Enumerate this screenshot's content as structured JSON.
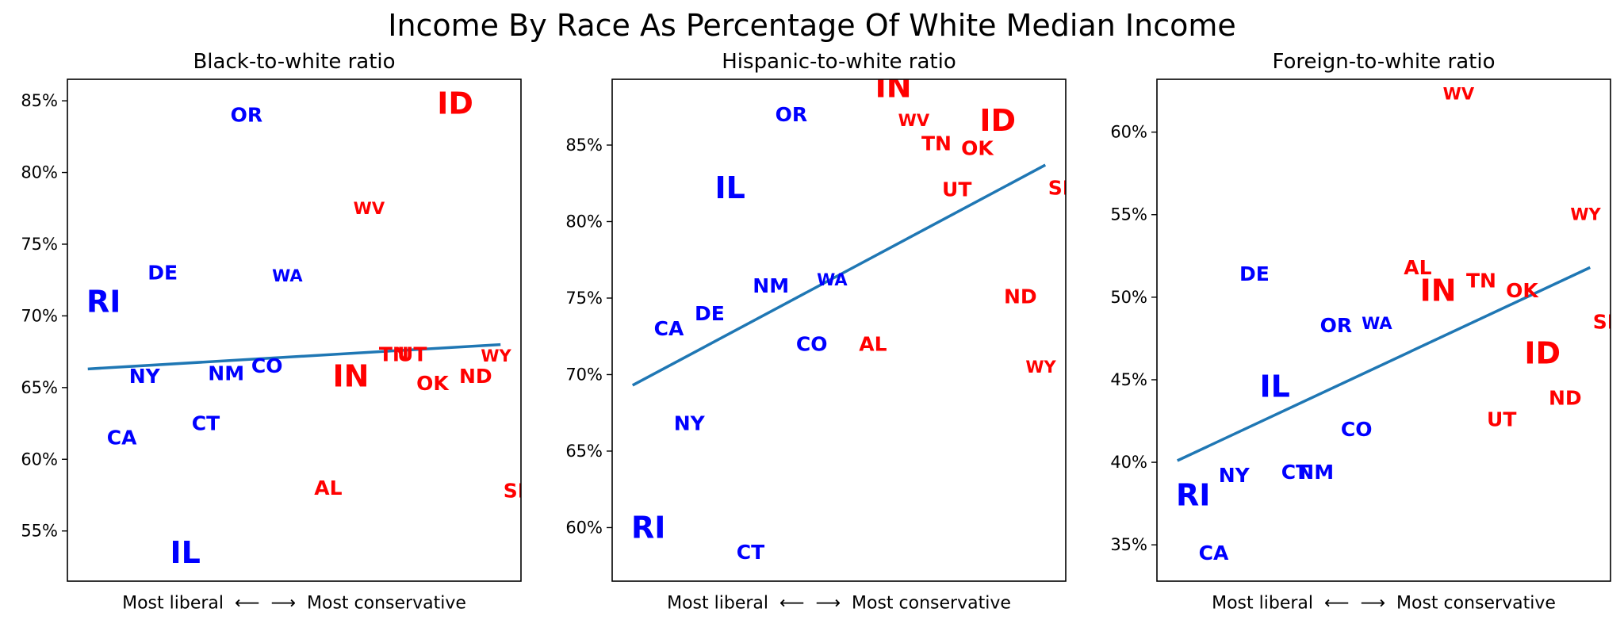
{
  "figure_title": "Income By Race As Percentage Of White Median Income",
  "colors": {
    "liberal": "#0000ff",
    "conservative": "#ff0000",
    "trend": "#1f77b4",
    "axis": "#000000"
  },
  "chart_data": [
    {
      "type": "scatter",
      "title": "Black-to-white ratio",
      "xlabel": "Most liberal  ⟵  ⟶  Most conservative",
      "ylabel": "",
      "xlim": [
        0,
        1
      ],
      "ylim": [
        51.5,
        86.5
      ],
      "yticks": [
        55,
        60,
        65,
        70,
        75,
        80,
        85
      ],
      "ytick_labels": [
        "55%",
        "60%",
        "65%",
        "70%",
        "75%",
        "80%",
        "85%"
      ],
      "trend": {
        "x": [
          0.045,
          0.955
        ],
        "y": [
          66.3,
          68.0
        ]
      },
      "points": [
        {
          "label": "RI",
          "x": 0.08,
          "y": 71.0,
          "color": "#0000ff",
          "size": "large"
        },
        {
          "label": "CA",
          "x": 0.12,
          "y": 61.5,
          "color": "#0000ff",
          "size": "small"
        },
        {
          "label": "NY",
          "x": 0.17,
          "y": 65.8,
          "color": "#0000ff",
          "size": "small"
        },
        {
          "label": "DE",
          "x": 0.21,
          "y": 73.0,
          "color": "#0000ff",
          "size": "small"
        },
        {
          "label": "IL",
          "x": 0.26,
          "y": 53.5,
          "color": "#0000ff",
          "size": "large"
        },
        {
          "label": "CT",
          "x": 0.305,
          "y": 62.5,
          "color": "#0000ff",
          "size": "small"
        },
        {
          "label": "NM",
          "x": 0.35,
          "y": 66.0,
          "color": "#0000ff",
          "size": "small"
        },
        {
          "label": "OR",
          "x": 0.395,
          "y": 84.0,
          "color": "#0000ff",
          "size": "small"
        },
        {
          "label": "CO",
          "x": 0.44,
          "y": 66.5,
          "color": "#0000ff",
          "size": "small"
        },
        {
          "label": "WA",
          "x": 0.485,
          "y": 72.8,
          "color": "#0000ff",
          "size": "xsmall"
        },
        {
          "label": "AL",
          "x": 0.575,
          "y": 58.0,
          "color": "#ff0000",
          "size": "small"
        },
        {
          "label": "IN",
          "x": 0.625,
          "y": 65.8,
          "color": "#ff0000",
          "size": "large"
        },
        {
          "label": "WV",
          "x": 0.665,
          "y": 77.5,
          "color": "#ff0000",
          "size": "xsmall"
        },
        {
          "label": "TN",
          "x": 0.72,
          "y": 67.3,
          "color": "#ff0000",
          "size": "small"
        },
        {
          "label": "UT",
          "x": 0.76,
          "y": 67.3,
          "color": "#ff0000",
          "size": "small"
        },
        {
          "label": "ID",
          "x": 0.855,
          "y": 84.8,
          "color": "#ff0000",
          "size": "large"
        },
        {
          "label": "OK",
          "x": 0.805,
          "y": 65.3,
          "color": "#ff0000",
          "size": "small"
        },
        {
          "label": "ND",
          "x": 0.9,
          "y": 65.8,
          "color": "#ff0000",
          "size": "small"
        },
        {
          "label": "WY",
          "x": 0.945,
          "y": 67.2,
          "color": "#ff0000",
          "size": "xsmall"
        },
        {
          "label": "SD",
          "x": 0.995,
          "y": 57.8,
          "color": "#ff0000",
          "size": "small"
        }
      ]
    },
    {
      "type": "scatter",
      "title": "Hispanic-to-white ratio",
      "xlabel": "Most liberal  ⟵  ⟶  Most conservative",
      "ylabel": "",
      "xlim": [
        0,
        1
      ],
      "ylim": [
        56.5,
        89.3
      ],
      "yticks": [
        60,
        65,
        70,
        75,
        80,
        85
      ],
      "ytick_labels": [
        "60%",
        "65%",
        "70%",
        "75%",
        "80%",
        "85%"
      ],
      "trend": {
        "x": [
          0.045,
          0.955
        ],
        "y": [
          69.3,
          83.7
        ]
      },
      "points": [
        {
          "label": "RI",
          "x": 0.08,
          "y": 60.0,
          "color": "#0000ff",
          "size": "large"
        },
        {
          "label": "CA",
          "x": 0.125,
          "y": 73.0,
          "color": "#0000ff",
          "size": "small"
        },
        {
          "label": "NY",
          "x": 0.17,
          "y": 66.8,
          "color": "#0000ff",
          "size": "small"
        },
        {
          "label": "DE",
          "x": 0.215,
          "y": 74.0,
          "color": "#0000ff",
          "size": "small"
        },
        {
          "label": "IL",
          "x": 0.26,
          "y": 82.2,
          "color": "#0000ff",
          "size": "large"
        },
        {
          "label": "CT",
          "x": 0.305,
          "y": 58.4,
          "color": "#0000ff",
          "size": "small"
        },
        {
          "label": "NM",
          "x": 0.35,
          "y": 75.8,
          "color": "#0000ff",
          "size": "small"
        },
        {
          "label": "OR",
          "x": 0.395,
          "y": 87.0,
          "color": "#0000ff",
          "size": "small"
        },
        {
          "label": "CO",
          "x": 0.44,
          "y": 72.0,
          "color": "#0000ff",
          "size": "small"
        },
        {
          "label": "WA",
          "x": 0.485,
          "y": 76.2,
          "color": "#0000ff",
          "size": "xsmall"
        },
        {
          "label": "AL",
          "x": 0.575,
          "y": 72.0,
          "color": "#ff0000",
          "size": "small"
        },
        {
          "label": "IN",
          "x": 0.62,
          "y": 88.8,
          "color": "#ff0000",
          "size": "large"
        },
        {
          "label": "WV",
          "x": 0.665,
          "y": 86.6,
          "color": "#ff0000",
          "size": "xsmall"
        },
        {
          "label": "TN",
          "x": 0.715,
          "y": 85.1,
          "color": "#ff0000",
          "size": "small"
        },
        {
          "label": "UT",
          "x": 0.76,
          "y": 82.1,
          "color": "#ff0000",
          "size": "small"
        },
        {
          "label": "OK",
          "x": 0.805,
          "y": 84.8,
          "color": "#ff0000",
          "size": "small"
        },
        {
          "label": "ID",
          "x": 0.85,
          "y": 86.6,
          "color": "#ff0000",
          "size": "large"
        },
        {
          "label": "ND",
          "x": 0.9,
          "y": 75.1,
          "color": "#ff0000",
          "size": "small"
        },
        {
          "label": "WY",
          "x": 0.945,
          "y": 70.5,
          "color": "#ff0000",
          "size": "xsmall"
        },
        {
          "label": "SD",
          "x": 0.995,
          "y": 82.2,
          "color": "#ff0000",
          "size": "small"
        }
      ]
    },
    {
      "type": "scatter",
      "title": "Foreign-to-white ratio",
      "xlabel": "Most liberal  ⟵  ⟶  Most conservative",
      "ylabel": "",
      "xlim": [
        0,
        1
      ],
      "ylim": [
        32.8,
        63.2
      ],
      "yticks": [
        35,
        40,
        45,
        50,
        55,
        60
      ],
      "ytick_labels": [
        "35%",
        "40%",
        "45%",
        "50%",
        "55%",
        "60%"
      ],
      "trend": {
        "x": [
          0.045,
          0.955
        ],
        "y": [
          40.1,
          51.8
        ]
      },
      "points": [
        {
          "label": "RI",
          "x": 0.08,
          "y": 38.0,
          "color": "#0000ff",
          "size": "large"
        },
        {
          "label": "CA",
          "x": 0.125,
          "y": 34.5,
          "color": "#0000ff",
          "size": "small"
        },
        {
          "label": "NY",
          "x": 0.17,
          "y": 39.2,
          "color": "#0000ff",
          "size": "small"
        },
        {
          "label": "DE",
          "x": 0.215,
          "y": 51.4,
          "color": "#0000ff",
          "size": "small"
        },
        {
          "label": "IL",
          "x": 0.26,
          "y": 44.6,
          "color": "#0000ff",
          "size": "large"
        },
        {
          "label": "CT",
          "x": 0.305,
          "y": 39.4,
          "color": "#0000ff",
          "size": "small"
        },
        {
          "label": "NM",
          "x": 0.35,
          "y": 39.4,
          "color": "#0000ff",
          "size": "small"
        },
        {
          "label": "OR",
          "x": 0.395,
          "y": 48.3,
          "color": "#0000ff",
          "size": "small"
        },
        {
          "label": "CO",
          "x": 0.44,
          "y": 42.0,
          "color": "#0000ff",
          "size": "small"
        },
        {
          "label": "WA",
          "x": 0.485,
          "y": 48.4,
          "color": "#0000ff",
          "size": "xsmall"
        },
        {
          "label": "AL",
          "x": 0.575,
          "y": 51.8,
          "color": "#ff0000",
          "size": "small"
        },
        {
          "label": "IN",
          "x": 0.62,
          "y": 50.4,
          "color": "#ff0000",
          "size": "large"
        },
        {
          "label": "WV",
          "x": 0.665,
          "y": 62.3,
          "color": "#ff0000",
          "size": "xsmall"
        },
        {
          "label": "TN",
          "x": 0.715,
          "y": 51.0,
          "color": "#ff0000",
          "size": "small"
        },
        {
          "label": "UT",
          "x": 0.76,
          "y": 42.6,
          "color": "#ff0000",
          "size": "small"
        },
        {
          "label": "OK",
          "x": 0.805,
          "y": 50.4,
          "color": "#ff0000",
          "size": "small"
        },
        {
          "label": "ID",
          "x": 0.85,
          "y": 46.6,
          "color": "#ff0000",
          "size": "large"
        },
        {
          "label": "ND",
          "x": 0.9,
          "y": 43.9,
          "color": "#ff0000",
          "size": "small"
        },
        {
          "label": "WY",
          "x": 0.945,
          "y": 55.0,
          "color": "#ff0000",
          "size": "xsmall"
        },
        {
          "label": "SD",
          "x": 0.995,
          "y": 48.5,
          "color": "#ff0000",
          "size": "small"
        }
      ]
    }
  ]
}
